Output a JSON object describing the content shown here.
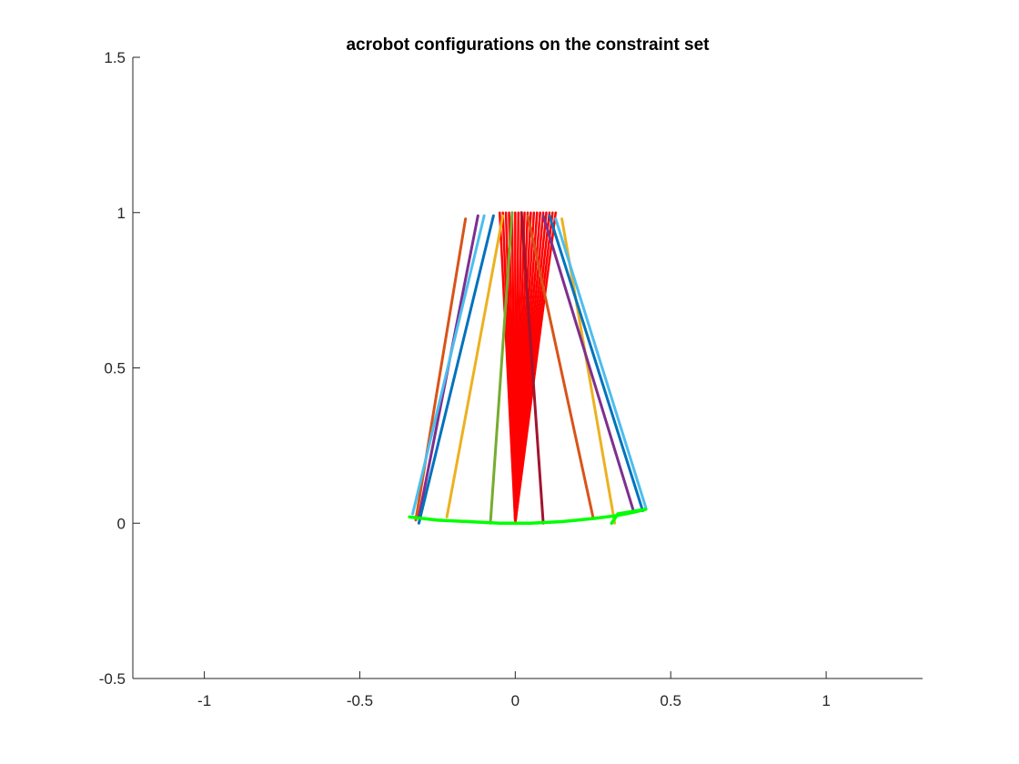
{
  "chart_data": {
    "type": "line",
    "title": "acrobot configurations on the constraint set",
    "xlabel": "",
    "ylabel": "",
    "xlim": [
      -1.23,
      1.31
    ],
    "ylim": [
      -0.5,
      1.5
    ],
    "xticks": [
      -1,
      -0.5,
      0,
      0.5,
      1
    ],
    "xtick_labels": [
      "-1",
      "-0.5",
      "0",
      "0.5",
      "1"
    ],
    "yticks": [
      -0.5,
      0,
      0.5,
      1,
      1.5
    ],
    "ytick_labels": [
      "-0.5",
      "0",
      "0.5",
      "1",
      "1.5"
    ],
    "grid": false,
    "legend": "none",
    "hip_point": [
      0,
      0
    ],
    "configurations": [
      {
        "stance_foot": [
          -0.32,
          0.01
        ],
        "swing_foot": [
          -0.16,
          0.98
        ],
        "color": "#D95319"
      },
      {
        "stance_foot": [
          -0.31,
          0.02
        ],
        "swing_foot": [
          -0.12,
          0.99
        ],
        "color": "#7E2F8E"
      },
      {
        "stance_foot": [
          -0.33,
          0.03
        ],
        "swing_foot": [
          -0.1,
          0.99
        ],
        "color": "#4DBEEE"
      },
      {
        "stance_foot": [
          -0.31,
          0.0
        ],
        "swing_foot": [
          -0.07,
          0.99
        ],
        "color": "#0072BD"
      },
      {
        "stance_foot": [
          -0.22,
          0.02
        ],
        "swing_foot": [
          -0.04,
          0.99
        ],
        "color": "#EDB120"
      },
      {
        "stance_foot": [
          -0.08,
          0.0
        ],
        "swing_foot": [
          -0.01,
          1.0
        ],
        "color": "#77AC30"
      },
      {
        "stance_foot": [
          0.09,
          0.0
        ],
        "swing_foot": [
          0.02,
          1.0
        ],
        "color": "#A2142F"
      },
      {
        "stance_foot": [
          0.25,
          0.02
        ],
        "swing_foot": [
          0.04,
          0.99
        ],
        "color": "#D95319"
      },
      {
        "stance_foot": [
          0.32,
          0.0
        ],
        "swing_foot": [
          0.15,
          0.98
        ],
        "color": "#EDB120"
      },
      {
        "stance_foot": [
          0.38,
          0.04
        ],
        "swing_foot": [
          0.09,
          0.99
        ],
        "color": "#7E2F8E"
      },
      {
        "stance_foot": [
          0.41,
          0.04
        ],
        "swing_foot": [
          0.11,
          0.99
        ],
        "color": "#0072BD"
      },
      {
        "stance_foot": [
          0.42,
          0.05
        ],
        "swing_foot": [
          0.13,
          0.98
        ],
        "color": "#4DBEEE"
      }
    ],
    "red_fan": {
      "color": "#FF0000",
      "x": [
        -0.05,
        -0.04,
        -0.03,
        -0.02,
        -0.01,
        0.0,
        0.01,
        0.02,
        0.03,
        0.04,
        0.05,
        0.06,
        0.07,
        0.08,
        0.09,
        0.1,
        0.11,
        0.12,
        0.13
      ],
      "y": 1.0
    },
    "foot_trajectory": {
      "color": "#00FF00",
      "x": [
        -0.34,
        -0.25,
        -0.15,
        -0.05,
        0.05,
        0.15,
        0.25,
        0.33,
        0.38,
        0.42,
        0.33,
        0.31
      ],
      "y": [
        0.02,
        0.01,
        0.005,
        0.0,
        0.0,
        0.005,
        0.015,
        0.025,
        0.035,
        0.045,
        0.03,
        0.0
      ]
    }
  }
}
